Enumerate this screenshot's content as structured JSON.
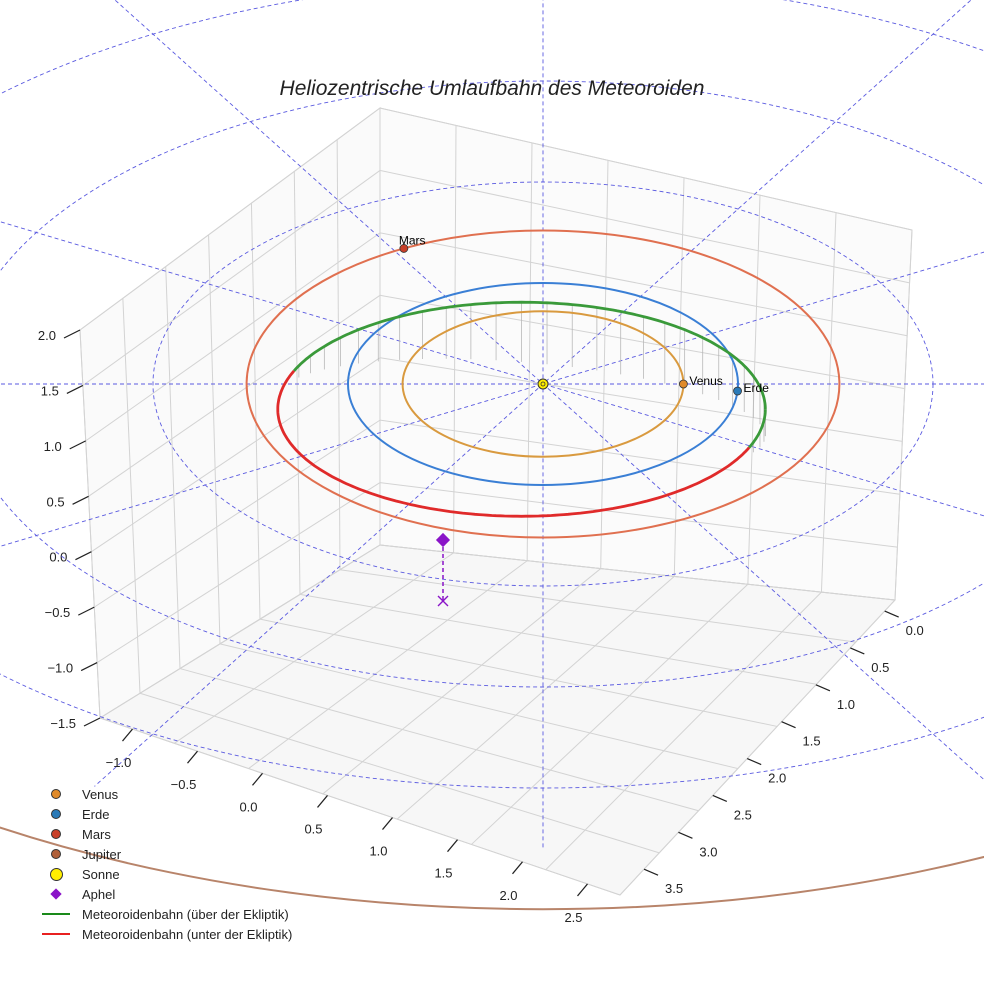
{
  "chart_data": {
    "type": "3d-orbit",
    "title": "Heliozentrische Umlaufbahn des Meteoroiden",
    "x_ticks": [
      "−1.0",
      "−0.5",
      "0.0",
      "0.5",
      "1.0",
      "1.5",
      "2.0",
      "2.5"
    ],
    "y_ticks": [
      "0.0",
      "0.5",
      "1.0",
      "1.5",
      "2.0",
      "2.5",
      "3.0",
      "3.5"
    ],
    "z_ticks": [
      "−1.5",
      "−1.0",
      "−0.5",
      "0.0",
      "0.5",
      "1.0",
      "1.5",
      "2.0"
    ],
    "planets": [
      {
        "name": "Venus",
        "orbit_radius_au": 0.72,
        "color": "#d99a3f",
        "dot_color": "#e08a2a",
        "angle_deg": 0,
        "label": "Venus"
      },
      {
        "name": "Erde",
        "orbit_radius_au": 1.0,
        "color": "#3a7fd5",
        "dot_color": "#2a7ab8",
        "angle_deg": -4,
        "label": "Erde"
      },
      {
        "name": "Mars",
        "orbit_radius_au": 1.52,
        "color": "#e07050",
        "dot_color": "#c8402a",
        "angle_deg": 118,
        "label": "Mars"
      },
      {
        "name": "Jupiter",
        "orbit_radius_au": 5.2,
        "color": "#b8846a",
        "dot_color": "#b0603a",
        "angle_deg": null,
        "label": ""
      }
    ],
    "sun": {
      "name": "Sonne",
      "color": "#ffee00"
    },
    "aphel": {
      "name": "Aphel",
      "color": "#8a14c8"
    },
    "meteoroid": {
      "semi_major_au": 1.25,
      "above_color": "#3a9a3a",
      "below_color": "#e02a2a"
    },
    "ecliptic_grid_radii_au": [
      1,
      2,
      3,
      4
    ],
    "legend": [
      {
        "label": "Venus",
        "type": "dot",
        "color": "#e08a2a"
      },
      {
        "label": "Erde",
        "type": "dot",
        "color": "#2a7ab8"
      },
      {
        "label": "Mars",
        "type": "dot",
        "color": "#c8402a"
      },
      {
        "label": "Jupiter",
        "type": "dot",
        "color": "#b0603a"
      },
      {
        "label": "Sonne",
        "type": "dot-big",
        "color": "#ffee00"
      },
      {
        "label": "Aphel",
        "type": "diamond",
        "color": "#8a14c8"
      },
      {
        "label": "Meteoroidenbahn (über der Ekliptik)",
        "type": "line",
        "color": "#1a8a1a"
      },
      {
        "label": "Meteoroidenbahn (unter der Ekliptik)",
        "type": "line",
        "color": "#e82020"
      }
    ]
  }
}
